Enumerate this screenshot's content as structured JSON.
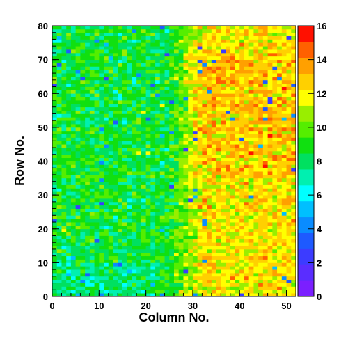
{
  "chart_data": {
    "type": "heatmap",
    "title": "",
    "xlabel": "Column No.",
    "ylabel": "Row No.",
    "xlim": [
      0,
      52
    ],
    "ylim": [
      0,
      80
    ],
    "n_columns": 52,
    "n_rows": 80,
    "x_ticks": [
      0,
      10,
      20,
      30,
      40,
      50
    ],
    "y_ticks": [
      0,
      10,
      20,
      30,
      40,
      50,
      60,
      70,
      80
    ],
    "z_range": [
      0,
      16
    ],
    "z_ticks": [
      0,
      2,
      4,
      6,
      8,
      10,
      12,
      14,
      16
    ],
    "z_colors": [
      "#7b1fff",
      "#5a2dff",
      "#3c3cff",
      "#1e5aff",
      "#0a8cff",
      "#00bfff",
      "#00ffff",
      "#00f0b0",
      "#00e060",
      "#10e010",
      "#55ee00",
      "#99ee00",
      "#ffff00",
      "#ffd000",
      "#ffa000",
      "#ff6000",
      "#ff1000"
    ],
    "trend": "Lower counts (~7-9) for columns 0-25, higher counts (~11-13) for columns 30-52, peaking around rows 40-70"
  }
}
